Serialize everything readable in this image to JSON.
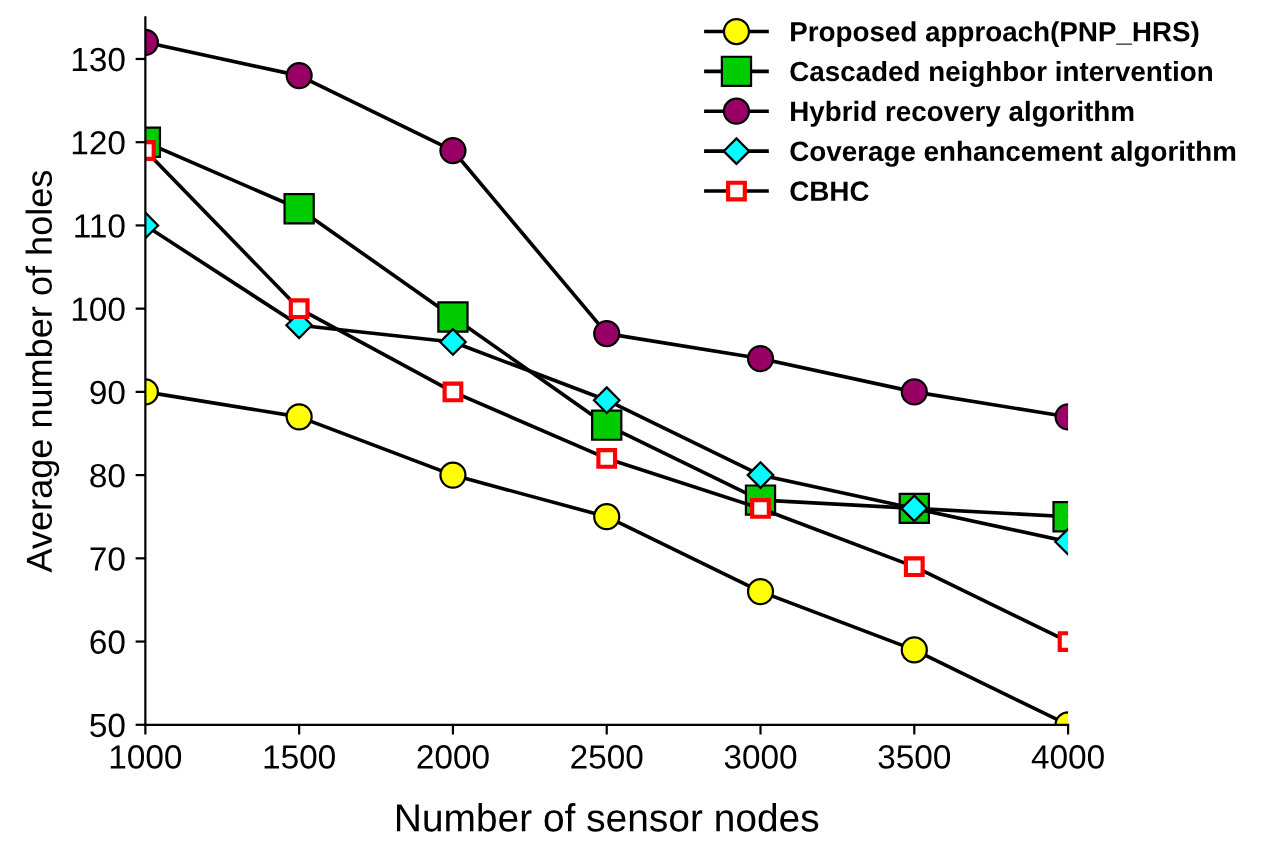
{
  "chart_data": {
    "type": "line",
    "xlabel": "Number of sensor nodes",
    "ylabel": "Average number of holes",
    "x": [
      1000,
      1500,
      2000,
      2500,
      3000,
      3500,
      4000
    ],
    "xlim": [
      1000,
      4000
    ],
    "xticks": [
      1000,
      1500,
      2000,
      2500,
      3000,
      3500,
      4000
    ],
    "ylim": [
      50,
      135
    ],
    "yticks": [
      50,
      60,
      70,
      80,
      90,
      100,
      110,
      120,
      130
    ],
    "grid": false,
    "legend": "top right",
    "line_style": "solid",
    "series": [
      {
        "name": "Proposed approach(PNP_HRS)",
        "color": "#ffff00",
        "marker": "circle",
        "values": [
          90,
          87,
          80,
          75,
          66,
          59,
          50
        ]
      },
      {
        "name": "Cascaded neighbor intervention",
        "color": "#00cc00",
        "marker": "square",
        "values": [
          120,
          112,
          99,
          86,
          77,
          76,
          75
        ]
      },
      {
        "name": "Hybrid recovery algorithm",
        "color": "#990066",
        "marker": "circle",
        "values": [
          132,
          128,
          119,
          97,
          94,
          90,
          87
        ]
      },
      {
        "name": "Coverage enhancement algorithm",
        "color": "#00ffff",
        "marker": "diamond",
        "values": [
          110,
          98,
          96,
          89,
          80,
          76,
          72
        ]
      },
      {
        "name": "CBHC",
        "color": "#ff0000",
        "marker": "square",
        "values": [
          119,
          100,
          90,
          82,
          76,
          69,
          60
        ]
      }
    ]
  }
}
